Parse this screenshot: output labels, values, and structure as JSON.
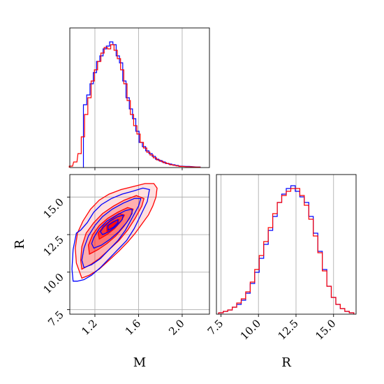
{
  "chart_data": [
    {
      "panel": "marginal-M",
      "type": "histogram",
      "xlim": [
        0.97,
        2.25
      ],
      "gridlines_x": [
        1.2,
        1.6,
        2.0
      ],
      "grid": true,
      "series": [
        {
          "color": "#0000ff",
          "x": [
            1.11,
            1.14,
            1.17,
            1.2,
            1.23,
            1.26,
            1.29,
            1.32,
            1.35,
            1.38,
            1.41,
            1.44,
            1.47,
            1.5,
            1.53,
            1.56,
            1.59,
            1.62,
            1.65,
            1.68,
            1.71,
            1.74,
            1.77,
            1.8,
            1.83,
            1.86,
            1.89,
            1.92,
            1.95,
            1.98,
            2.05,
            2.15
          ],
          "counts": [
            0.45,
            0.52,
            0.6,
            0.68,
            0.76,
            0.8,
            0.85,
            0.87,
            0.9,
            0.88,
            0.8,
            0.75,
            0.62,
            0.5,
            0.42,
            0.35,
            0.26,
            0.18,
            0.15,
            0.12,
            0.1,
            0.08,
            0.06,
            0.05,
            0.04,
            0.03,
            0.025,
            0.02,
            0.015,
            0.01,
            0.008,
            0.004
          ]
        },
        {
          "color": "#ff0000",
          "x": [
            0.98,
            1.02,
            1.06,
            1.09,
            1.12,
            1.15,
            1.18,
            1.21,
            1.24,
            1.27,
            1.3,
            1.33,
            1.36,
            1.39,
            1.42,
            1.45,
            1.48,
            1.51,
            1.54,
            1.57,
            1.6,
            1.63,
            1.66,
            1.69,
            1.72,
            1.75,
            1.78,
            1.81,
            1.84,
            1.87,
            1.9,
            1.93,
            1.96,
            1.99,
            2.05,
            2.15
          ],
          "counts": [
            0.01,
            0.04,
            0.1,
            0.22,
            0.38,
            0.5,
            0.62,
            0.7,
            0.76,
            0.82,
            0.86,
            0.85,
            0.88,
            0.84,
            0.78,
            0.7,
            0.6,
            0.48,
            0.38,
            0.3,
            0.24,
            0.18,
            0.14,
            0.11,
            0.09,
            0.07,
            0.055,
            0.045,
            0.035,
            0.028,
            0.02,
            0.016,
            0.012,
            0.008,
            0.006,
            0.003
          ]
        }
      ]
    },
    {
      "panel": "joint-M-R",
      "type": "contour",
      "xlabel": "M",
      "ylabel": "R",
      "xlim": [
        0.97,
        2.25
      ],
      "ylim": [
        7.2,
        16.5
      ],
      "xticks": [
        "1.2",
        "1.6",
        "2.0"
      ],
      "yticks": [
        "7.5",
        "10.0",
        "12.5",
        "15.0"
      ],
      "xtick_values": [
        1.2,
        1.6,
        2.0
      ],
      "ytick_values": [
        7.5,
        10.0,
        12.5,
        15.0
      ],
      "grid": true,
      "blue_contours": [
        [
          [
            1.0,
            9.4
          ],
          [
            1.04,
            9.4
          ],
          [
            1.1,
            9.5
          ],
          [
            1.17,
            9.8
          ],
          [
            1.25,
            10.3
          ],
          [
            1.33,
            10.9
          ],
          [
            1.41,
            11.5
          ],
          [
            1.49,
            12.1
          ],
          [
            1.56,
            12.9
          ],
          [
            1.62,
            13.8
          ],
          [
            1.68,
            14.7
          ],
          [
            1.7,
            15.5
          ],
          [
            1.64,
            15.6
          ],
          [
            1.55,
            15.4
          ],
          [
            1.45,
            15.2
          ],
          [
            1.35,
            14.9
          ],
          [
            1.26,
            14.5
          ],
          [
            1.19,
            14.0
          ],
          [
            1.13,
            13.3
          ],
          [
            1.07,
            12.8
          ],
          [
            1.03,
            12.6
          ],
          [
            1.0,
            11.5
          ],
          [
            0.99,
            10.2
          ]
        ],
        [
          [
            1.1,
            10.3
          ],
          [
            1.17,
            10.5
          ],
          [
            1.25,
            10.9
          ],
          [
            1.33,
            11.5
          ],
          [
            1.41,
            12.1
          ],
          [
            1.48,
            12.8
          ],
          [
            1.54,
            13.6
          ],
          [
            1.6,
            14.4
          ],
          [
            1.62,
            14.9
          ],
          [
            1.56,
            14.9
          ],
          [
            1.46,
            14.6
          ],
          [
            1.36,
            14.2
          ],
          [
            1.27,
            13.7
          ],
          [
            1.2,
            13.1
          ],
          [
            1.14,
            12.4
          ],
          [
            1.1,
            11.6
          ],
          [
            1.08,
            10.8
          ]
        ],
        [
          [
            1.19,
            11.6
          ],
          [
            1.26,
            11.8
          ],
          [
            1.34,
            12.2
          ],
          [
            1.42,
            12.7
          ],
          [
            1.49,
            13.3
          ],
          [
            1.54,
            13.9
          ],
          [
            1.54,
            14.2
          ],
          [
            1.48,
            14.1
          ],
          [
            1.4,
            13.8
          ],
          [
            1.31,
            13.4
          ],
          [
            1.24,
            12.9
          ],
          [
            1.19,
            12.3
          ],
          [
            1.17,
            11.9
          ]
        ],
        [
          [
            1.27,
            12.5
          ],
          [
            1.33,
            12.7
          ],
          [
            1.4,
            13.1
          ],
          [
            1.45,
            13.5
          ],
          [
            1.46,
            13.8
          ],
          [
            1.41,
            13.7
          ],
          [
            1.34,
            13.4
          ],
          [
            1.28,
            13.0
          ],
          [
            1.25,
            12.7
          ]
        ],
        [
          [
            1.32,
            12.8
          ],
          [
            1.37,
            13.0
          ],
          [
            1.41,
            13.3
          ],
          [
            1.41,
            13.5
          ],
          [
            1.36,
            13.3
          ],
          [
            1.32,
            13.1
          ]
        ]
      ],
      "red_contours": [
        [
          [
            1.08,
            9.6
          ],
          [
            1.15,
            9.8
          ],
          [
            1.24,
            10.2
          ],
          [
            1.33,
            10.8
          ],
          [
            1.42,
            11.4
          ],
          [
            1.5,
            12.0
          ],
          [
            1.57,
            12.6
          ],
          [
            1.63,
            13.2
          ],
          [
            1.69,
            13.8
          ],
          [
            1.73,
            14.4
          ],
          [
            1.76,
            15.0
          ],
          [
            1.77,
            15.6
          ],
          [
            1.74,
            15.9
          ],
          [
            1.66,
            15.9
          ],
          [
            1.55,
            15.7
          ],
          [
            1.44,
            15.5
          ],
          [
            1.33,
            15.2
          ],
          [
            1.24,
            14.8
          ],
          [
            1.16,
            14.2
          ],
          [
            1.09,
            13.4
          ],
          [
            1.04,
            12.6
          ],
          [
            1.02,
            11.6
          ],
          [
            1.03,
            10.6
          ]
        ],
        [
          [
            1.08,
            10.2
          ],
          [
            1.16,
            10.5
          ],
          [
            1.24,
            10.9
          ],
          [
            1.33,
            11.5
          ],
          [
            1.42,
            12.1
          ],
          [
            1.5,
            12.8
          ],
          [
            1.57,
            13.6
          ],
          [
            1.63,
            14.4
          ],
          [
            1.65,
            14.9
          ],
          [
            1.58,
            15.1
          ],
          [
            1.47,
            14.8
          ],
          [
            1.37,
            14.4
          ],
          [
            1.27,
            13.9
          ],
          [
            1.19,
            13.3
          ],
          [
            1.12,
            12.6
          ],
          [
            1.08,
            11.7
          ],
          [
            1.07,
            10.8
          ]
        ],
        [
          [
            1.15,
            11.2
          ],
          [
            1.23,
            11.5
          ],
          [
            1.31,
            11.9
          ],
          [
            1.39,
            12.4
          ],
          [
            1.46,
            13.0
          ],
          [
            1.52,
            13.6
          ],
          [
            1.55,
            14.2
          ],
          [
            1.5,
            14.3
          ],
          [
            1.41,
            14.0
          ],
          [
            1.32,
            13.6
          ],
          [
            1.24,
            13.1
          ],
          [
            1.18,
            12.5
          ],
          [
            1.14,
            11.8
          ]
        ],
        [
          [
            1.24,
            12.2
          ],
          [
            1.31,
            12.5
          ],
          [
            1.38,
            12.9
          ],
          [
            1.44,
            13.4
          ],
          [
            1.47,
            13.8
          ],
          [
            1.42,
            13.9
          ],
          [
            1.35,
            13.5
          ],
          [
            1.28,
            13.1
          ],
          [
            1.23,
            12.6
          ]
        ],
        [
          [
            1.31,
            12.7
          ],
          [
            1.36,
            12.9
          ],
          [
            1.41,
            13.2
          ],
          [
            1.42,
            13.5
          ],
          [
            1.37,
            13.4
          ],
          [
            1.31,
            13.1
          ]
        ]
      ],
      "red_fill_levels": [
        0.12,
        0.22,
        0.34,
        0.5,
        0.75
      ]
    },
    {
      "panel": "marginal-R",
      "type": "histogram",
      "xlabel": "R",
      "xlim": [
        7.2,
        16.5
      ],
      "xticks": [
        "7.5",
        "10.0",
        "12.5",
        "15.0"
      ],
      "xtick_values": [
        7.5,
        10.0,
        12.5,
        15.0
      ],
      "grid": true,
      "series": [
        {
          "color": "#0000ff",
          "x": [
            7.5,
            7.8,
            8.1,
            8.4,
            8.7,
            9.0,
            9.3,
            9.6,
            9.9,
            10.2,
            10.5,
            10.8,
            11.1,
            11.4,
            11.7,
            12.0,
            12.3,
            12.6,
            12.9,
            13.2,
            13.5,
            13.8,
            14.1,
            14.4,
            14.7,
            15.0,
            15.3,
            15.6,
            15.9,
            16.2
          ],
          "counts": [
            0.01,
            0.02,
            0.03,
            0.05,
            0.07,
            0.1,
            0.15,
            0.22,
            0.3,
            0.4,
            0.5,
            0.6,
            0.7,
            0.8,
            0.86,
            0.9,
            0.92,
            0.88,
            0.84,
            0.8,
            0.7,
            0.58,
            0.45,
            0.32,
            0.2,
            0.12,
            0.07,
            0.04,
            0.02,
            0.01
          ]
        },
        {
          "color": "#ff0000",
          "x": [
            7.5,
            7.8,
            8.1,
            8.4,
            8.7,
            9.0,
            9.3,
            9.6,
            9.9,
            10.2,
            10.5,
            10.8,
            11.1,
            11.4,
            11.7,
            12.0,
            12.3,
            12.6,
            12.9,
            13.2,
            13.5,
            13.8,
            14.1,
            14.4,
            14.7,
            15.0,
            15.3,
            15.6,
            15.9,
            16.2
          ],
          "counts": [
            0.01,
            0.02,
            0.03,
            0.05,
            0.08,
            0.11,
            0.16,
            0.23,
            0.32,
            0.42,
            0.52,
            0.62,
            0.72,
            0.8,
            0.85,
            0.88,
            0.9,
            0.9,
            0.85,
            0.78,
            0.68,
            0.56,
            0.44,
            0.31,
            0.2,
            0.12,
            0.07,
            0.04,
            0.02,
            0.01
          ]
        }
      ]
    }
  ]
}
